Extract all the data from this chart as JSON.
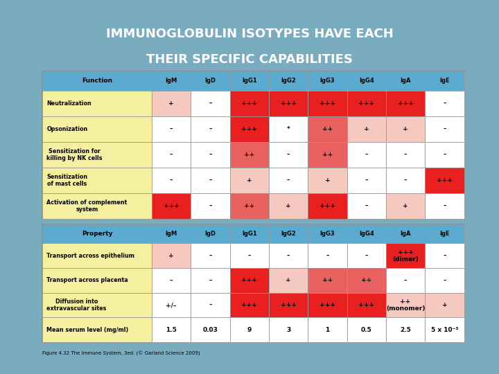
{
  "title_line1": "IMMUNOGLOBULIN ISOTYPES HAVE EACH",
  "title_line2": "THEIR SPECIFIC CAPABILITIES",
  "bg_color": "#7aacbf",
  "header_bg": "#5aabcf",
  "caption": "Figure 4.32 The Immune System, 3ed. (© Garland Science 2009)",
  "table1_header": [
    "Function",
    "IgM",
    "IgD",
    "IgG1",
    "IgG2",
    "IgG3",
    "IgG4",
    "IgA",
    "IgE"
  ],
  "table1_rows": [
    [
      "Neutralization",
      "+",
      "–",
      "+++",
      "+++",
      "+++",
      "+++",
      "+++",
      "–"
    ],
    [
      "Opsonization",
      "–",
      "–",
      "+++",
      "*",
      "++",
      "+",
      "+",
      "–"
    ],
    [
      "Sensitization for\nkilling by NK cells",
      "–",
      "–",
      "++",
      "–",
      "++",
      "–",
      "–",
      "–"
    ],
    [
      "Sensitization\nof mast cells",
      "–",
      "–",
      "+",
      "–",
      "+",
      "–",
      "–",
      "+++"
    ],
    [
      "Activation of complement\nsystem",
      "+++",
      "–",
      "++",
      "+",
      "+++",
      "–",
      "+",
      "–"
    ]
  ],
  "table1_colors": [
    [
      "yellow",
      "lpink",
      "white",
      "red",
      "red",
      "red",
      "red",
      "red",
      "white"
    ],
    [
      "yellow",
      "white",
      "white",
      "red",
      "white",
      "mred",
      "lpink",
      "lpink",
      "white"
    ],
    [
      "yellow",
      "white",
      "white",
      "mred",
      "white",
      "mred",
      "white",
      "white",
      "white"
    ],
    [
      "yellow",
      "white",
      "white",
      "lpink",
      "white",
      "lpink",
      "white",
      "white",
      "red"
    ],
    [
      "yellow",
      "red",
      "white",
      "mred",
      "lpink",
      "red",
      "white",
      "lpink",
      "white"
    ]
  ],
  "table2_header": [
    "Property",
    "IgM",
    "IgD",
    "IgG1",
    "IgG2",
    "IgG3",
    "IgG4",
    "IgA",
    "IgE"
  ],
  "table2_rows": [
    [
      "Transport across epithelium",
      "+",
      "–",
      "–",
      "–",
      "–",
      "–",
      "+++\n(dimer)",
      "–"
    ],
    [
      "Transport across placenta",
      "–",
      "–",
      "+++",
      "+",
      "++",
      "++",
      "–",
      "–"
    ],
    [
      "Diffusion into\nextravascular sites",
      "+/–",
      "–",
      "+++",
      "+++",
      "+++",
      "+++",
      "++\n(monomer)",
      "+"
    ],
    [
      "Mean serum level (mg/ml)",
      "1.5",
      "0.03",
      "9",
      "3",
      "1",
      "0.5",
      "2.5",
      "5 x 10⁻³"
    ]
  ],
  "table2_colors": [
    [
      "yellow",
      "lpink",
      "white",
      "white",
      "white",
      "white",
      "white",
      "red",
      "white"
    ],
    [
      "yellow",
      "white",
      "white",
      "red",
      "lpink",
      "mred",
      "mred",
      "white",
      "white"
    ],
    [
      "yellow",
      "white",
      "white",
      "red",
      "red",
      "red",
      "red",
      "lpink",
      "lpink"
    ],
    [
      "yellow",
      "white",
      "white",
      "white",
      "white",
      "white",
      "white",
      "white",
      "white"
    ]
  ],
  "color_map": {
    "white": "#ffffff",
    "yellow": "#f5f0a0",
    "lpink": "#f5c8c0",
    "mred": "#e86060",
    "red": "#e82020"
  }
}
